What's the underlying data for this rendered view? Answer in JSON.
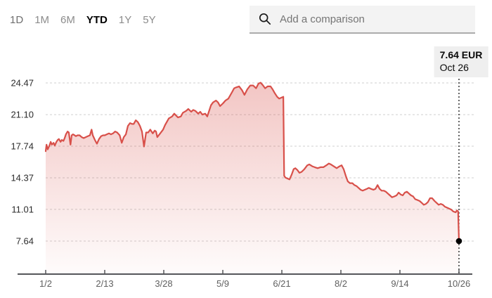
{
  "tabs": {
    "items": [
      {
        "label": "1D",
        "active": false
      },
      {
        "label": "1M",
        "active": false
      },
      {
        "label": "6M",
        "active": false
      },
      {
        "label": "YTD",
        "active": true
      },
      {
        "label": "1Y",
        "active": false
      },
      {
        "label": "5Y",
        "active": false
      }
    ]
  },
  "search": {
    "placeholder": "Add a comparison"
  },
  "tooltip": {
    "price": "7.64 EUR",
    "date": "Oct 26"
  },
  "colors": {
    "accent_red": "#d8504a",
    "search_bg": "#f3f3f3",
    "tooltip_bg": "#efefef"
  },
  "chart_data": {
    "type": "area",
    "title": "",
    "xlabel": "",
    "ylabel": "",
    "unit": "EUR",
    "last_price": 7.64,
    "last_date": "Oct 26",
    "x_range": [
      "1/2",
      "10/26"
    ],
    "x_tick_labels": [
      "1/2",
      "2/13",
      "3/28",
      "5/9",
      "6/21",
      "8/2",
      "9/14",
      "10/26"
    ],
    "y_ticks": [
      24.47,
      21.1,
      17.74,
      14.37,
      11.01,
      7.64
    ],
    "y_tick_labels": [
      "24.47",
      "21.10",
      "17.74",
      "14.37",
      "11.01",
      "7.64"
    ],
    "grid": "dashed-horizontal",
    "legend": "none",
    "line_color": "#d8504a",
    "grid_color": "#cfcfcf",
    "axis_color": "#55565a",
    "ytick_color": "#2b2b2b",
    "xtick_color": "#606060",
    "marker_color": "#000000",
    "points": [
      [
        0,
        17.2
      ],
      [
        0.002,
        17.9
      ],
      [
        0.005,
        17.4
      ],
      [
        0.009,
        17.8
      ],
      [
        0.012,
        18.2
      ],
      [
        0.015,
        17.9
      ],
      [
        0.019,
        18.1
      ],
      [
        0.022,
        17.8
      ],
      [
        0.026,
        18.2
      ],
      [
        0.029,
        18.4
      ],
      [
        0.032,
        18.5
      ],
      [
        0.036,
        18.2
      ],
      [
        0.039,
        18.4
      ],
      [
        0.043,
        18.3
      ],
      [
        0.046,
        18.6
      ],
      [
        0.049,
        19.0
      ],
      [
        0.053,
        19.3
      ],
      [
        0.056,
        19.2
      ],
      [
        0.06,
        17.9
      ],
      [
        0.063,
        18.9
      ],
      [
        0.066,
        19.0
      ],
      [
        0.07,
        18.9
      ],
      [
        0.073,
        18.8
      ],
      [
        0.077,
        18.9
      ],
      [
        0.082,
        18.9
      ],
      [
        0.087,
        18.7
      ],
      [
        0.092,
        18.6
      ],
      [
        0.097,
        18.7
      ],
      [
        0.102,
        18.8
      ],
      [
        0.107,
        18.9
      ],
      [
        0.111,
        19.5
      ],
      [
        0.114,
        18.9
      ],
      [
        0.119,
        18.4
      ],
      [
        0.124,
        18.0
      ],
      [
        0.129,
        18.5
      ],
      [
        0.134,
        18.8
      ],
      [
        0.139,
        18.9
      ],
      [
        0.143,
        18.9
      ],
      [
        0.148,
        19.0
      ],
      [
        0.153,
        19.1
      ],
      [
        0.158,
        19.0
      ],
      [
        0.163,
        19.1
      ],
      [
        0.168,
        19.3
      ],
      [
        0.173,
        19.2
      ],
      [
        0.179,
        18.9
      ],
      [
        0.184,
        18.1
      ],
      [
        0.189,
        18.7
      ],
      [
        0.194,
        19.0
      ],
      [
        0.199,
        19.9
      ],
      [
        0.204,
        20.2
      ],
      [
        0.209,
        20.1
      ],
      [
        0.213,
        20.1
      ],
      [
        0.218,
        20.5
      ],
      [
        0.223,
        20.3
      ],
      [
        0.228,
        19.9
      ],
      [
        0.233,
        19.3
      ],
      [
        0.238,
        17.7
      ],
      [
        0.243,
        19.2
      ],
      [
        0.248,
        19.2
      ],
      [
        0.253,
        19.5
      ],
      [
        0.259,
        19.1
      ],
      [
        0.264,
        19.4
      ],
      [
        0.267,
        19.3
      ],
      [
        0.27,
        18.7
      ],
      [
        0.277,
        19.1
      ],
      [
        0.284,
        19.5
      ],
      [
        0.289,
        20.0
      ],
      [
        0.298,
        20.7
      ],
      [
        0.306,
        20.9
      ],
      [
        0.311,
        21.2
      ],
      [
        0.32,
        20.8
      ],
      [
        0.327,
        20.9
      ],
      [
        0.332,
        21.3
      ],
      [
        0.34,
        21.5
      ],
      [
        0.345,
        21.7
      ],
      [
        0.352,
        21.4
      ],
      [
        0.357,
        21.6
      ],
      [
        0.362,
        21.5
      ],
      [
        0.369,
        21.2
      ],
      [
        0.374,
        21.4
      ],
      [
        0.379,
        21.1
      ],
      [
        0.386,
        21.2
      ],
      [
        0.391,
        20.9
      ],
      [
        0.4,
        22.1
      ],
      [
        0.405,
        22.4
      ],
      [
        0.412,
        22.6
      ],
      [
        0.417,
        22.4
      ],
      [
        0.422,
        22.0
      ],
      [
        0.429,
        22.3
      ],
      [
        0.435,
        22.6
      ],
      [
        0.442,
        22.8
      ],
      [
        0.451,
        23.5
      ],
      [
        0.456,
        23.9
      ],
      [
        0.461,
        24.0
      ],
      [
        0.468,
        24.1
      ],
      [
        0.475,
        23.7
      ],
      [
        0.481,
        23.2
      ],
      [
        0.488,
        23.8
      ],
      [
        0.495,
        24.2
      ],
      [
        0.502,
        24.2
      ],
      [
        0.509,
        23.9
      ],
      [
        0.515,
        24.4
      ],
      [
        0.52,
        24.5
      ],
      [
        0.526,
        24.2
      ],
      [
        0.531,
        23.9
      ],
      [
        0.537,
        24.1
      ],
      [
        0.544,
        24.1
      ],
      [
        0.549,
        23.8
      ],
      [
        0.554,
        23.4
      ],
      [
        0.56,
        23.0
      ],
      [
        0.565,
        22.8
      ],
      [
        0.57,
        22.9
      ],
      [
        0.575,
        23.0
      ],
      [
        0.577,
        14.6
      ],
      [
        0.58,
        14.4
      ],
      [
        0.585,
        14.3
      ],
      [
        0.59,
        14.2
      ],
      [
        0.595,
        14.7
      ],
      [
        0.6,
        15.3
      ],
      [
        0.604,
        15.4
      ],
      [
        0.609,
        15.2
      ],
      [
        0.614,
        14.9
      ],
      [
        0.619,
        15.0
      ],
      [
        0.626,
        15.3
      ],
      [
        0.633,
        15.7
      ],
      [
        0.638,
        15.8
      ],
      [
        0.645,
        15.6
      ],
      [
        0.651,
        15.5
      ],
      [
        0.658,
        15.4
      ],
      [
        0.665,
        15.5
      ],
      [
        0.672,
        15.5
      ],
      [
        0.679,
        15.7
      ],
      [
        0.685,
        15.9
      ],
      [
        0.69,
        15.8
      ],
      [
        0.697,
        15.6
      ],
      [
        0.704,
        15.4
      ],
      [
        0.711,
        15.6
      ],
      [
        0.716,
        15.7
      ],
      [
        0.721,
        15.3
      ],
      [
        0.726,
        14.6
      ],
      [
        0.731,
        14.0
      ],
      [
        0.736,
        13.8
      ],
      [
        0.742,
        13.8
      ],
      [
        0.747,
        13.6
      ],
      [
        0.752,
        13.5
      ],
      [
        0.757,
        13.3
      ],
      [
        0.762,
        13.1
      ],
      [
        0.767,
        13.0
      ],
      [
        0.772,
        13.1
      ],
      [
        0.777,
        13.2
      ],
      [
        0.782,
        13.3
      ],
      [
        0.787,
        13.2
      ],
      [
        0.793,
        13.1
      ],
      [
        0.798,
        13.2
      ],
      [
        0.803,
        13.6
      ],
      [
        0.808,
        13.2
      ],
      [
        0.813,
        13.0
      ],
      [
        0.818,
        13.0
      ],
      [
        0.823,
        12.9
      ],
      [
        0.828,
        12.7
      ],
      [
        0.833,
        12.5
      ],
      [
        0.838,
        12.3
      ],
      [
        0.844,
        12.4
      ],
      [
        0.849,
        12.5
      ],
      [
        0.854,
        12.8
      ],
      [
        0.859,
        12.6
      ],
      [
        0.864,
        12.5
      ],
      [
        0.869,
        12.8
      ],
      [
        0.874,
        12.9
      ],
      [
        0.879,
        12.7
      ],
      [
        0.884,
        12.5
      ],
      [
        0.889,
        12.4
      ],
      [
        0.894,
        12.1
      ],
      [
        0.9,
        12.0
      ],
      [
        0.905,
        11.9
      ],
      [
        0.91,
        11.7
      ],
      [
        0.915,
        11.5
      ],
      [
        0.92,
        11.6
      ],
      [
        0.925,
        11.8
      ],
      [
        0.93,
        12.2
      ],
      [
        0.935,
        12.2
      ],
      [
        0.941,
        11.9
      ],
      [
        0.946,
        11.7
      ],
      [
        0.951,
        11.5
      ],
      [
        0.956,
        11.6
      ],
      [
        0.961,
        11.5
      ],
      [
        0.966,
        11.3
      ],
      [
        0.971,
        11.2
      ],
      [
        0.976,
        11.1
      ],
      [
        0.981,
        11.0
      ],
      [
        0.986,
        10.8
      ],
      [
        0.992,
        10.7
      ],
      [
        0.995,
        10.9
      ],
      [
        0.998,
        10.8
      ],
      [
        1,
        7.64
      ]
    ]
  }
}
